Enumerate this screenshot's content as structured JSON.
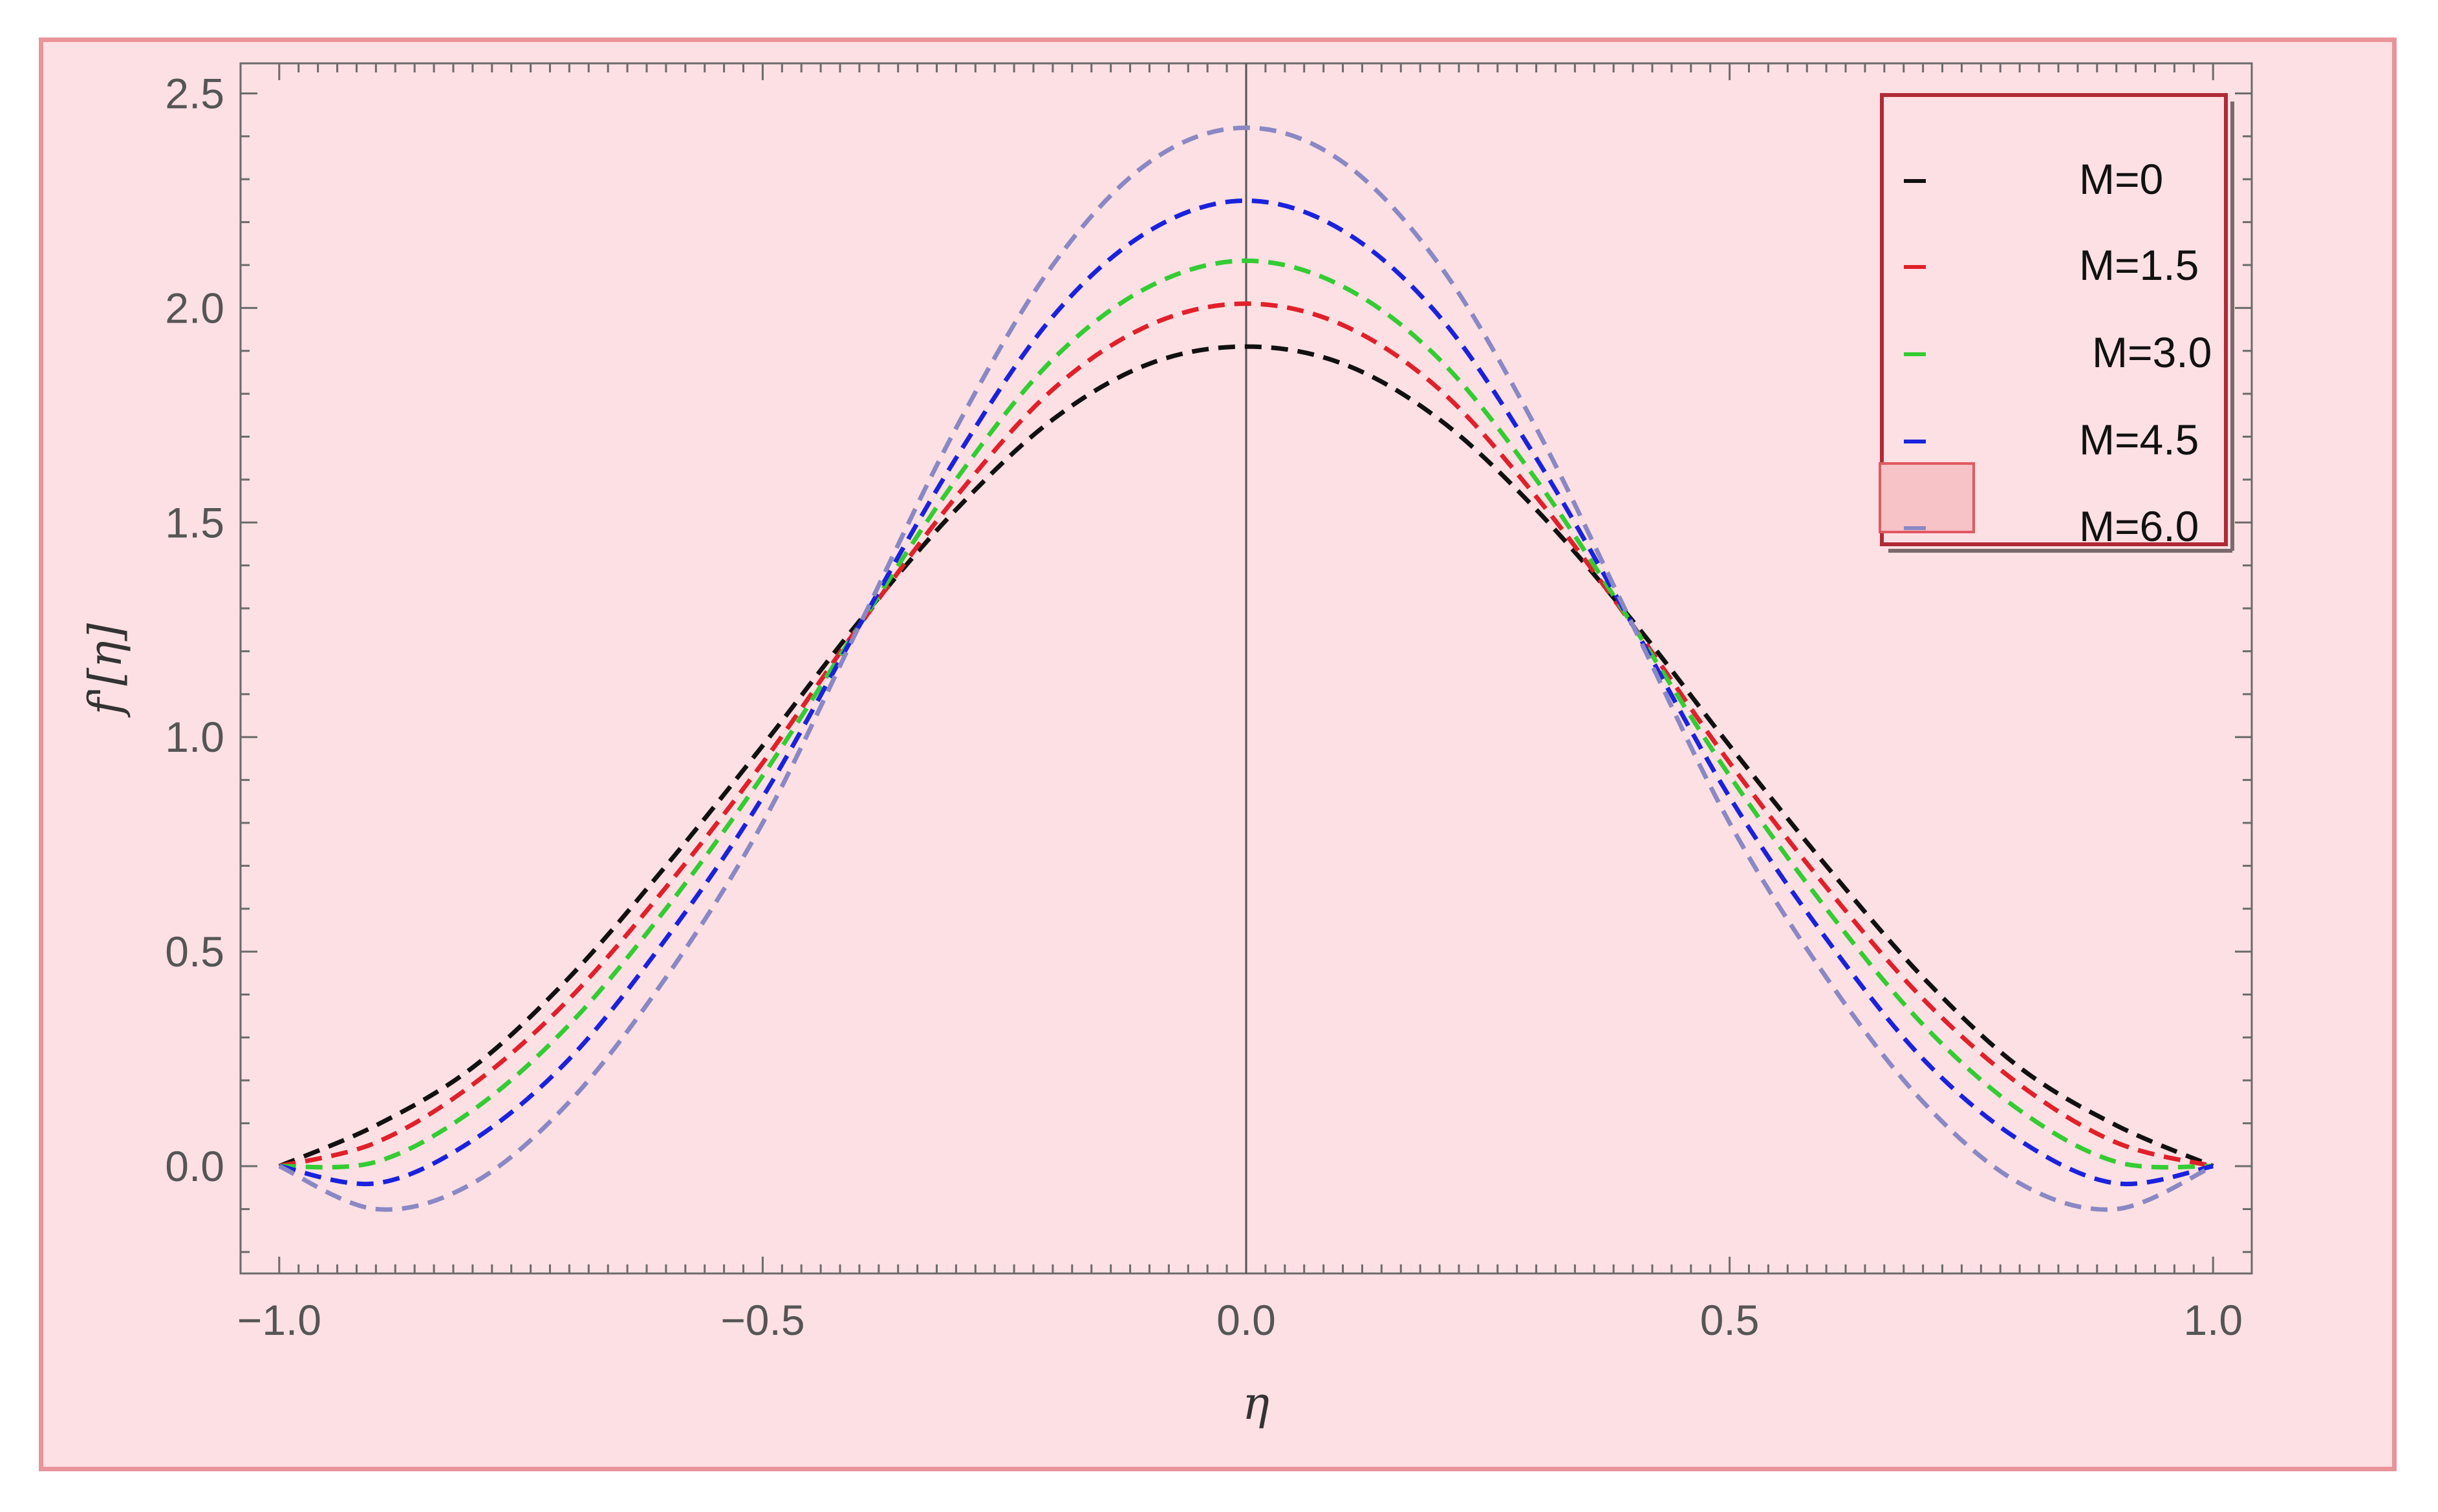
{
  "chart_data": {
    "type": "line",
    "title": "",
    "xlabel": "η",
    "ylabel": "f'[η]",
    "xlim": [
      -1.04,
      1.04
    ],
    "ylim": [
      -0.25,
      2.57
    ],
    "xticks": [
      -1.0,
      -0.5,
      0.0,
      0.5,
      1.0
    ],
    "xtick_labels": [
      "−1.0",
      "−0.5",
      "0.0",
      "0.5",
      "1.0"
    ],
    "yticks": [
      0.0,
      0.5,
      1.0,
      1.5,
      2.0,
      2.5
    ],
    "ytick_labels": [
      "0.0",
      "0.5",
      "1.0",
      "1.5",
      "2.0",
      "2.5"
    ],
    "grid": false,
    "legend_position": "top-right",
    "line_style": "dashed",
    "series": [
      {
        "name": "M=0",
        "color": "#111111",
        "x": [
          -1.0,
          -0.9,
          -0.8,
          -0.7,
          -0.6,
          -0.5,
          -0.4,
          -0.3,
          -0.2,
          -0.1,
          0.0,
          0.1,
          0.2,
          0.3,
          0.4,
          0.5,
          0.6,
          0.7,
          0.8,
          0.9,
          1.0
        ],
        "y": [
          0.0,
          0.095,
          0.23,
          0.44,
          0.7,
          0.98,
          1.27,
          1.53,
          1.74,
          1.87,
          1.91,
          1.87,
          1.74,
          1.53,
          1.27,
          0.98,
          0.7,
          0.44,
          0.23,
          0.095,
          0.0
        ]
      },
      {
        "name": "M=1.5",
        "color": "#e0202a",
        "x": [
          -1.0,
          -0.9,
          -0.8,
          -0.7,
          -0.6,
          -0.5,
          -0.4,
          -0.3,
          -0.2,
          -0.1,
          0.0,
          0.1,
          0.2,
          0.3,
          0.4,
          0.5,
          0.6,
          0.7,
          0.8,
          0.9,
          1.0
        ],
        "y": [
          0.0,
          0.055,
          0.19,
          0.39,
          0.65,
          0.94,
          1.26,
          1.56,
          1.81,
          1.96,
          2.01,
          1.96,
          1.81,
          1.56,
          1.26,
          0.94,
          0.65,
          0.39,
          0.19,
          0.055,
          0.0
        ]
      },
      {
        "name": "M=3.0",
        "color": "#33cc33",
        "x": [
          -1.0,
          -0.9,
          -0.8,
          -0.7,
          -0.6,
          -0.5,
          -0.4,
          -0.3,
          -0.2,
          -0.1,
          0.0,
          0.1,
          0.2,
          0.3,
          0.4,
          0.5,
          0.6,
          0.7,
          0.8,
          0.9,
          1.0
        ],
        "y": [
          0.0,
          0.01,
          0.13,
          0.33,
          0.6,
          0.91,
          1.26,
          1.6,
          1.88,
          2.05,
          2.11,
          2.05,
          1.88,
          1.6,
          1.26,
          0.91,
          0.6,
          0.33,
          0.13,
          0.01,
          0.0
        ]
      },
      {
        "name": "M=4.5",
        "color": "#1a22dd",
        "x": [
          -1.0,
          -0.9,
          -0.8,
          -0.7,
          -0.6,
          -0.5,
          -0.4,
          -0.3,
          -0.2,
          -0.1,
          0.0,
          0.1,
          0.2,
          0.3,
          0.4,
          0.5,
          0.6,
          0.7,
          0.8,
          0.9,
          1.0
        ],
        "y": [
          0.0,
          -0.04,
          0.06,
          0.25,
          0.53,
          0.86,
          1.26,
          1.65,
          1.98,
          2.18,
          2.25,
          2.18,
          1.98,
          1.65,
          1.26,
          0.86,
          0.53,
          0.25,
          0.06,
          -0.04,
          0.0
        ]
      },
      {
        "name": "M=6.0",
        "color": "#8a88c4",
        "x": [
          -1.0,
          -0.9,
          -0.8,
          -0.7,
          -0.6,
          -0.5,
          -0.4,
          -0.3,
          -0.2,
          -0.1,
          0.0,
          0.1,
          0.2,
          0.3,
          0.4,
          0.5,
          0.6,
          0.7,
          0.8,
          0.9,
          1.0
        ],
        "y": [
          0.0,
          -0.1,
          -0.04,
          0.15,
          0.44,
          0.8,
          1.26,
          1.72,
          2.1,
          2.34,
          2.42,
          2.34,
          2.1,
          1.72,
          1.26,
          0.8,
          0.44,
          0.15,
          -0.04,
          -0.1,
          0.0
        ]
      }
    ]
  }
}
